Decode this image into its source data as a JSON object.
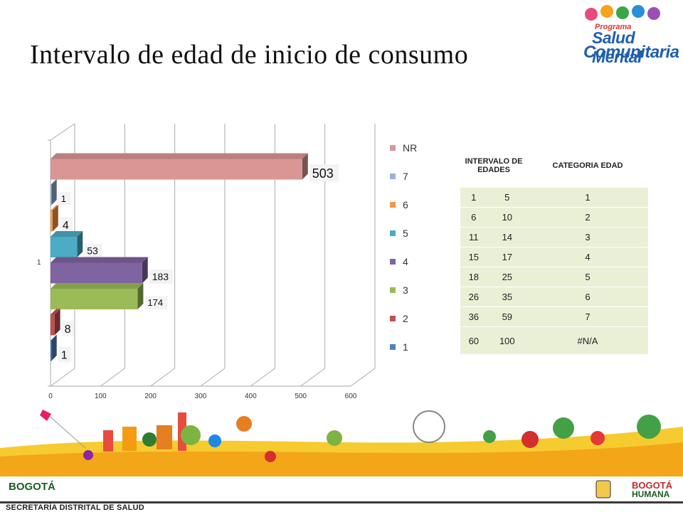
{
  "title": "Intervalo de edad de inicio de consumo",
  "logo": {
    "line1": "Programa",
    "line2": "Salud Mental",
    "line3": "Comunitaria"
  },
  "chart_data": {
    "type": "bar",
    "orientation": "horizontal",
    "categories": [
      "1"
    ],
    "series": [
      {
        "name": "1",
        "values": [
          1
        ],
        "color": "#4f81bd"
      },
      {
        "name": "2",
        "values": [
          8
        ],
        "color": "#c0504d"
      },
      {
        "name": "3",
        "values": [
          174
        ],
        "color": "#9bbb59"
      },
      {
        "name": "4",
        "values": [
          183
        ],
        "color": "#8064a2"
      },
      {
        "name": "5",
        "values": [
          53
        ],
        "color": "#4bacc6"
      },
      {
        "name": "6",
        "values": [
          4
        ],
        "color": "#f79646"
      },
      {
        "name": "7",
        "values": [
          1
        ],
        "color": "#95b3d7"
      },
      {
        "name": "NR",
        "values": [
          503
        ],
        "color": "#d99694"
      }
    ],
    "xlim": [
      0,
      600
    ],
    "x_ticks": [
      "0",
      "100",
      "200",
      "300",
      "400",
      "500",
      "600"
    ],
    "y_tick_label": "1",
    "grid": true,
    "legend_position": "right",
    "legend": [
      "NR",
      "7",
      "6",
      "5",
      "4",
      "3",
      "2",
      "1"
    ]
  },
  "table": {
    "headers": [
      "INTERVALO DE EDADES",
      "CATEGORIA EDAD"
    ],
    "rows": [
      {
        "from": "1",
        "to": "5",
        "cat": "1"
      },
      {
        "from": "6",
        "to": "10",
        "cat": "2"
      },
      {
        "from": "11",
        "to": "14",
        "cat": "3"
      },
      {
        "from": "15",
        "to": "17",
        "cat": "4"
      },
      {
        "from": "18",
        "to": "25",
        "cat": "5"
      },
      {
        "from": "26",
        "to": "35",
        "cat": "6"
      },
      {
        "from": "36",
        "to": "59",
        "cat": "7"
      },
      {
        "from": "60",
        "to": "100",
        "cat": "#N/A"
      }
    ]
  },
  "footer": {
    "secretaria": "SECRETARÍA DISTRITAL DE SALUD",
    "bogota_left": "BOGOTÁ",
    "bogota_right_1": "BOGOTÁ",
    "bogota_right_2": "HUMANA"
  }
}
